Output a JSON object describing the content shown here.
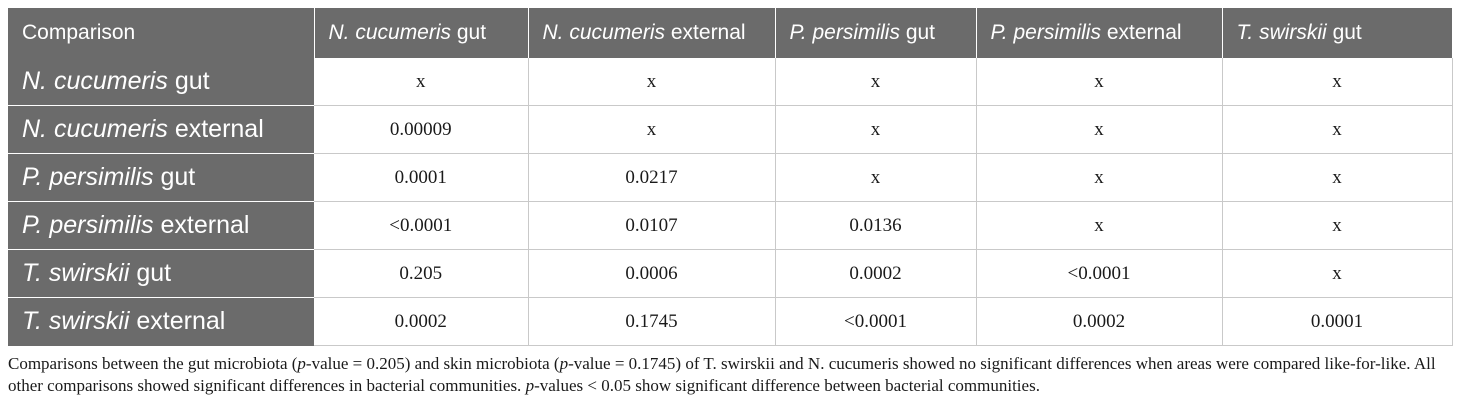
{
  "table": {
    "corner": "Comparison",
    "columns": [
      {
        "species": "N. cucumeris",
        "area": "gut"
      },
      {
        "species": "N. cucumeris",
        "area": "external"
      },
      {
        "species": "P. persimilis",
        "area": "gut"
      },
      {
        "species": "P. persimilis",
        "area": "external"
      },
      {
        "species": "T. swirskii",
        "area": "gut"
      }
    ],
    "rows": [
      {
        "species": "N. cucumeris",
        "area": "gut",
        "cells": [
          "x",
          "x",
          "x",
          "x",
          "x"
        ]
      },
      {
        "species": "N. cucumeris",
        "area": "external",
        "cells": [
          "0.00009",
          "x",
          "x",
          "x",
          "x"
        ]
      },
      {
        "species": "P. persimilis",
        "area": "gut",
        "cells": [
          "0.0001",
          "0.0217",
          "x",
          "x",
          "x"
        ]
      },
      {
        "species": "P. persimilis",
        "area": "external",
        "cells": [
          "<0.0001",
          "0.0107",
          "0.0136",
          "x",
          "x"
        ]
      },
      {
        "species": "T. swirskii",
        "area": "gut",
        "cells": [
          "0.205",
          "0.0006",
          "0.0002",
          "<0.0001",
          "x"
        ]
      },
      {
        "species": "T. swirskii",
        "area": "external",
        "cells": [
          "0.0002",
          "0.1745",
          "<0.0001",
          "0.0002",
          "0.0001"
        ]
      }
    ]
  },
  "caption": {
    "part1": "Comparisons between the gut microbiota (",
    "p1": "p",
    "part2": "-value = 0.205) and skin microbiota (",
    "p2": "p",
    "part3": "-value = 0.1745) of T. swirskii and N. cucumeris showed no significant differences when areas were compared like-for-like. All other comparisons showed significant differences in bacterial communities. ",
    "p3": "p",
    "part4": "-values < 0.05 show significant difference between bacterial communities."
  }
}
